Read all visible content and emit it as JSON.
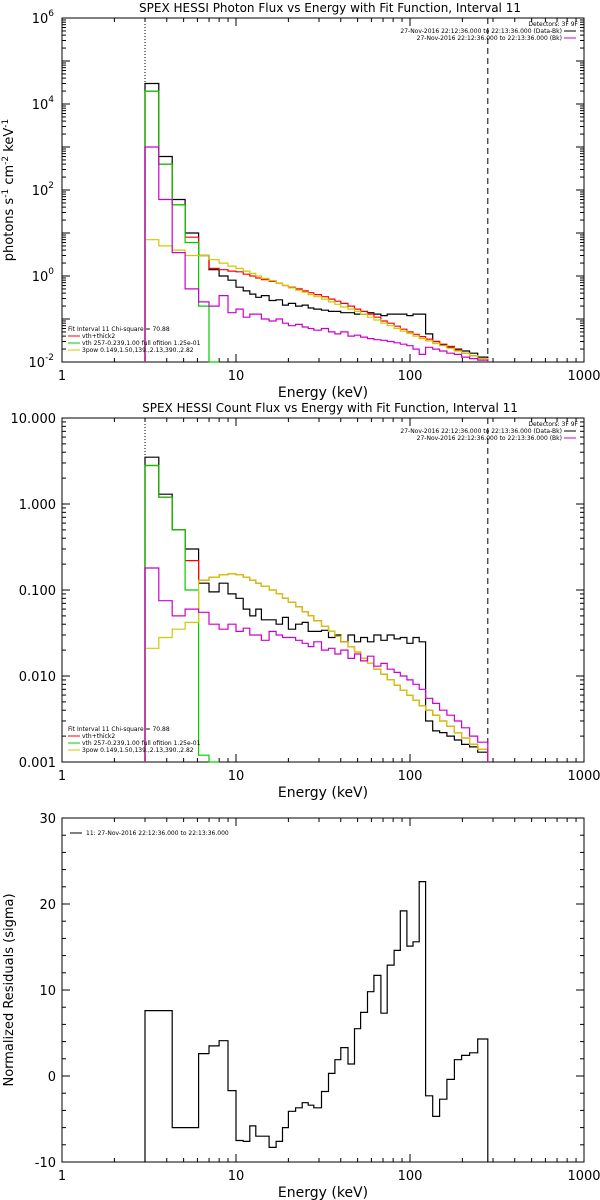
{
  "chart_data": [
    {
      "type": "line",
      "title": "SPEX HESSI Photon Flux vs Energy with Fit Function, Interval 11",
      "xlabel": "Energy (keV)",
      "ylabel": "photons s",
      "ylabel_sup1": "-1",
      "ylabel_mid": " cm",
      "ylabel_sup2": "-2",
      "ylabel_end": " keV",
      "ylabel_sup3": "-1",
      "xscale": "log",
      "yscale": "log",
      "xlim": [
        1,
        1000
      ],
      "ylim": [
        0.01,
        1000000
      ],
      "xtick_values": [
        1,
        10,
        100,
        1000
      ],
      "xtick_labels": [
        "1",
        "10",
        "100",
        "1000"
      ],
      "ytick_values": [
        0.01,
        1,
        100,
        10000,
        1000000
      ],
      "ytick_bases": [
        "10",
        "10",
        "10",
        "10",
        "10"
      ],
      "ytick_exps": [
        "-2",
        "0",
        "2",
        "4",
        "6"
      ],
      "vlines": [
        {
          "x": 3.0,
          "style": "dotted"
        },
        {
          "x": 280,
          "style": "dashed"
        }
      ],
      "detectors_label": "Detectors: 3F 9F",
      "legend_top": [
        {
          "text": "27-Nov-2016 22:12:36.000 to 22:13:36.000 (Data-Bk)",
          "color": "#000000"
        },
        {
          "text": "27-Nov-2016 22:12:36.000 to 22:13:36.000 (Bk)",
          "color": "#cc00cc"
        }
      ],
      "legend_bottom": [
        {
          "text": "Fit Interval 11   Chi-square = 70.88",
          "color": null
        },
        {
          "text": "vth+thick2",
          "color": "#ff0000"
        },
        {
          "text": "vth 257-0.239,1.00  full ofition 1.25e-01",
          "color": "#00cc00"
        },
        {
          "text": "3pow 0.149,1.50,139.,2.13,390.,2.82",
          "color": "#cccc00"
        }
      ],
      "bin_edges": [
        3,
        3.6,
        4.3,
        5.1,
        6.1,
        7.0,
        8.0,
        9.0,
        10.0,
        11.0,
        12.0,
        13.0,
        14.0,
        15.5,
        17.0,
        18.5,
        20.0,
        22.0,
        24.0,
        26.0,
        28.0,
        31.0,
        34.0,
        37.0,
        40.0,
        44.0,
        48.0,
        52.0,
        57.0,
        62.0,
        68.0,
        74.0,
        81.0,
        88.0,
        96.0,
        104.0,
        113.0,
        123.0,
        135.0,
        148.0,
        163.0,
        180.0,
        198.0,
        220.0,
        245.0,
        280.0
      ],
      "series": [
        {
          "name": "Data-Bk",
          "color": "#000000",
          "values": [
            30000,
            600,
            60,
            10,
            3.0,
            1.4,
            1.0,
            0.8,
            0.55,
            0.45,
            0.38,
            0.32,
            0.35,
            0.27,
            0.28,
            0.21,
            0.23,
            0.2,
            0.21,
            0.18,
            0.17,
            0.16,
            0.15,
            0.15,
            0.14,
            0.14,
            0.13,
            0.13,
            0.14,
            0.13,
            0.12,
            0.13,
            0.13,
            0.13,
            0.12,
            0.13,
            0.13,
            0.045,
            0.03,
            0.025,
            0.022,
            0.02,
            0.018,
            0.016,
            0.013
          ]
        },
        {
          "name": "vth+thick2",
          "color": "#ff0000",
          "values": [
            20000,
            400,
            45,
            8,
            3.0,
            1.5,
            1.4,
            1.3,
            1.25,
            1.1,
            1.0,
            0.9,
            0.82,
            0.75,
            0.68,
            0.6,
            0.55,
            0.5,
            0.45,
            0.41,
            0.37,
            0.33,
            0.29,
            0.26,
            0.23,
            0.2,
            0.17,
            0.15,
            0.13,
            0.11,
            0.09,
            0.08,
            0.068,
            0.058,
            0.05,
            0.044,
            0.039,
            0.034,
            0.03,
            0.026,
            0.023,
            0.019,
            0.016,
            0.014,
            0.012
          ]
        },
        {
          "name": "vth",
          "color": "#00cc00",
          "values": [
            20000,
            400,
            45,
            6,
            0.2,
            0.0001
          ]
        },
        {
          "name": "3pow",
          "color": "#cccc00",
          "values": [
            7,
            5,
            4,
            3,
            3.0,
            2.4,
            2.0,
            1.7,
            1.5,
            1.3,
            1.15,
            1.0,
            0.88,
            0.78,
            0.68,
            0.6,
            0.53,
            0.47,
            0.42,
            0.37,
            0.33,
            0.29,
            0.25,
            0.22,
            0.19,
            0.17,
            0.15,
            0.13,
            0.11,
            0.095,
            0.08,
            0.07,
            0.06,
            0.052,
            0.046,
            0.04,
            0.035,
            0.031,
            0.027,
            0.024,
            0.021,
            0.018,
            0.016,
            0.014,
            0.012
          ]
        },
        {
          "name": "Bk",
          "color": "#cc00cc",
          "values": [
            1000,
            60,
            3.5,
            0.5,
            0.25,
            0.2,
            0.35,
            0.14,
            0.17,
            0.11,
            0.13,
            0.13,
            0.1,
            0.09,
            0.1,
            0.08,
            0.07,
            0.075,
            0.065,
            0.06,
            0.055,
            0.06,
            0.05,
            0.045,
            0.05,
            0.04,
            0.042,
            0.038,
            0.035,
            0.033,
            0.032,
            0.03,
            0.028,
            0.026,
            0.024,
            0.02,
            0.015,
            0.022,
            0.02,
            0.018,
            0.016,
            0.015,
            0.013,
            0.012,
            0.011
          ]
        }
      ]
    },
    {
      "type": "line",
      "title": "SPEX HESSI Count Flux vs Energy with Fit Function, Interval 11",
      "xlabel": "Energy (keV)",
      "ylabel": "",
      "xscale": "log",
      "yscale": "log",
      "xlim": [
        1,
        1000
      ],
      "ylim": [
        0.001,
        10
      ],
      "xtick_values": [
        1,
        10,
        100,
        1000
      ],
      "xtick_labels": [
        "1",
        "10",
        "100",
        "1000"
      ],
      "ytick_values": [
        0.001,
        0.01,
        0.1,
        1,
        10
      ],
      "ytick_labels": [
        "0.001",
        "0.010",
        "0.100",
        "1.000",
        "10.000"
      ],
      "vlines": [
        {
          "x": 3.0,
          "style": "dotted"
        },
        {
          "x": 280,
          "style": "dashed"
        }
      ],
      "detectors_label": "Detectors: 3F 9F",
      "legend_top": [
        {
          "text": "27-Nov-2016 22:12:36.000 to 22:13:36.000 (Data-Bk)",
          "color": "#000000"
        },
        {
          "text": "27-Nov-2016 22:12:36.000 to 22:13:36.000 (Bk)",
          "color": "#cc00cc"
        }
      ],
      "legend_bottom": [
        {
          "text": "Fit Interval 11   Chi-square = 70.88",
          "color": null
        },
        {
          "text": "vth+thick2",
          "color": "#ff0000"
        },
        {
          "text": "vth 257-0.239,1.00  full ofition 1.25e-01",
          "color": "#00cc00"
        },
        {
          "text": "3pow 0.149,1.50,139.,2.13,390.,2.82",
          "color": "#cccc00"
        }
      ],
      "bin_edges": [
        3,
        3.6,
        4.3,
        5.1,
        6.1,
        7.0,
        8.0,
        9.0,
        10.0,
        11.0,
        12.0,
        13.0,
        14.0,
        15.5,
        17.0,
        18.5,
        20.0,
        22.0,
        24.0,
        26.0,
        28.0,
        31.0,
        34.0,
        37.0,
        40.0,
        44.0,
        48.0,
        52.0,
        57.0,
        62.0,
        68.0,
        74.0,
        81.0,
        88.0,
        96.0,
        104.0,
        113.0,
        123.0,
        135.0,
        148.0,
        163.0,
        180.0,
        198.0,
        220.0,
        245.0,
        280.0
      ],
      "series": [
        {
          "name": "Data-Bk",
          "color": "#000000",
          "values": [
            3.5,
            1.3,
            0.5,
            0.3,
            0.12,
            0.095,
            0.12,
            0.09,
            0.08,
            0.06,
            0.05,
            0.06,
            0.045,
            0.045,
            0.04,
            0.048,
            0.035,
            0.04,
            0.042,
            0.033,
            0.033,
            0.034,
            0.028,
            0.03,
            0.025,
            0.03,
            0.025,
            0.028,
            0.025,
            0.03,
            0.026,
            0.03,
            0.027,
            0.028,
            0.024,
            0.028,
            0.025,
            0.003,
            0.0023,
            0.0022,
            0.002,
            0.0018,
            0.0016,
            0.0015,
            0.0013
          ]
        },
        {
          "name": "vth+thick2",
          "color": "#ff0000",
          "values": [
            2.8,
            1.2,
            0.5,
            0.22,
            0.13,
            0.14,
            0.15,
            0.155,
            0.15,
            0.14,
            0.13,
            0.12,
            0.11,
            0.1,
            0.09,
            0.08,
            0.072,
            0.064,
            0.056,
            0.05,
            0.044,
            0.038,
            0.033,
            0.029,
            0.025,
            0.022,
            0.019,
            0.016,
            0.014,
            0.012,
            0.0105,
            0.009,
            0.0078,
            0.0068,
            0.006,
            0.0052,
            0.0045,
            0.004,
            0.0035,
            0.003,
            0.0026,
            0.0022,
            0.0019,
            0.0016,
            0.0014
          ]
        },
        {
          "name": "vth",
          "color": "#00cc00",
          "values": [
            2.8,
            1.2,
            0.5,
            0.1,
            0.0012,
            0.0001
          ]
        },
        {
          "name": "3pow",
          "color": "#cccc00",
          "values": [
            0.021,
            0.028,
            0.035,
            0.042,
            0.13,
            0.14,
            0.15,
            0.155,
            0.15,
            0.14,
            0.13,
            0.12,
            0.11,
            0.1,
            0.09,
            0.08,
            0.072,
            0.064,
            0.056,
            0.05,
            0.044,
            0.038,
            0.033,
            0.029,
            0.025,
            0.022,
            0.019,
            0.016,
            0.014,
            0.012,
            0.0105,
            0.009,
            0.0078,
            0.0068,
            0.006,
            0.0052,
            0.0045,
            0.004,
            0.0035,
            0.003,
            0.0026,
            0.0022,
            0.0019,
            0.0016,
            0.0014
          ]
        },
        {
          "name": "Bk",
          "color": "#cc00cc",
          "values": [
            0.18,
            0.075,
            0.05,
            0.06,
            0.055,
            0.04,
            0.035,
            0.04,
            0.033,
            0.036,
            0.03,
            0.03,
            0.026,
            0.033,
            0.03,
            0.028,
            0.028,
            0.026,
            0.024,
            0.022,
            0.025,
            0.02,
            0.021,
            0.018,
            0.02,
            0.016,
            0.018,
            0.015,
            0.017,
            0.013,
            0.014,
            0.012,
            0.011,
            0.01,
            0.009,
            0.008,
            0.007,
            0.0055,
            0.0048,
            0.004,
            0.0035,
            0.003,
            0.0025,
            0.002,
            0.0017
          ]
        }
      ]
    },
    {
      "type": "line",
      "title": "",
      "xlabel": "Energy (keV)",
      "ylabel": "Normalized Residuals (sigma)",
      "xscale": "log",
      "yscale": "linear",
      "xlim": [
        1,
        1000
      ],
      "ylim": [
        -10,
        30
      ],
      "xtick_values": [
        1,
        10,
        100,
        1000
      ],
      "xtick_labels": [
        "1",
        "10",
        "100",
        "1000"
      ],
      "ytick_values": [
        -10,
        0,
        10,
        20,
        30
      ],
      "ytick_labels": [
        "-10",
        "0",
        "10",
        "20",
        "30"
      ],
      "legend_top": [
        {
          "text": "11: 27-Nov-2016 22:12:36.000 to 22:13:36.000",
          "color": "#000000"
        }
      ],
      "bin_edges": [
        3,
        3.6,
        4.3,
        5.1,
        6.1,
        7.0,
        8.0,
        9.0,
        10.0,
        11.0,
        12.0,
        13.0,
        14.0,
        15.5,
        17.0,
        18.5,
        20.0,
        22.0,
        24.0,
        26.0,
        28.0,
        31.0,
        34.0,
        37.0,
        40.0,
        44.0,
        48.0,
        52.0,
        57.0,
        62.0,
        68.0,
        74.0,
        81.0,
        88.0,
        96.0,
        104.0,
        113.0,
        123.0,
        135.0,
        148.0,
        163.0,
        180.0,
        198.0,
        220.0,
        245.0,
        280.0
      ],
      "series": [
        {
          "name": "residuals",
          "color": "#000000",
          "values": [
            7.6,
            7.6,
            -6.0,
            -6.0,
            2.6,
            3.5,
            4.1,
            -1.7,
            -7.5,
            -7.6,
            -5.8,
            -7.0,
            -7.0,
            -8.3,
            -7.6,
            -6.0,
            -4.1,
            -3.7,
            -3.1,
            -3.4,
            -3.7,
            -1.8,
            0.3,
            1.9,
            3.3,
            1.4,
            5.5,
            7.4,
            9.8,
            11.7,
            7.3,
            12.9,
            14.6,
            19.2,
            15.1,
            15.6,
            22.6,
            -2.3,
            -4.7,
            -2.7,
            -0.4,
            1.9,
            2.4,
            2.7,
            4.3
          ]
        }
      ]
    }
  ]
}
